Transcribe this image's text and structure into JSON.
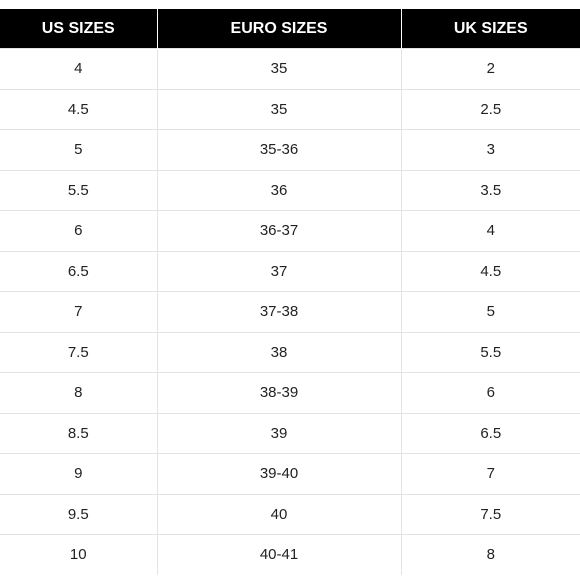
{
  "headers": {
    "us": "US SIZES",
    "euro": "EURO SIZES",
    "uk": "UK SIZES"
  },
  "rows": [
    {
      "us": "4",
      "euro": "35",
      "uk": "2"
    },
    {
      "us": "4.5",
      "euro": "35",
      "uk": "2.5"
    },
    {
      "us": "5",
      "euro": "35-36",
      "uk": "3"
    },
    {
      "us": "5.5",
      "euro": "36",
      "uk": "3.5"
    },
    {
      "us": "6",
      "euro": "36-37",
      "uk": "4"
    },
    {
      "us": "6.5",
      "euro": "37",
      "uk": "4.5"
    },
    {
      "us": "7",
      "euro": "37-38",
      "uk": "5"
    },
    {
      "us": "7.5",
      "euro": "38",
      "uk": "5.5"
    },
    {
      "us": "8",
      "euro": "38-39",
      "uk": "6"
    },
    {
      "us": "8.5",
      "euro": "39",
      "uk": "6.5"
    },
    {
      "us": "9",
      "euro": "39-40",
      "uk": "7"
    },
    {
      "us": "9.5",
      "euro": "40",
      "uk": "7.5"
    },
    {
      "us": "10",
      "euro": "40-41",
      "uk": "8"
    }
  ],
  "chart_data": {
    "type": "table",
    "columns": [
      "US SIZES",
      "EURO SIZES",
      "UK SIZES"
    ],
    "rows": [
      [
        "4",
        "35",
        "2"
      ],
      [
        "4.5",
        "35",
        "2.5"
      ],
      [
        "5",
        "35-36",
        "3"
      ],
      [
        "5.5",
        "36",
        "3.5"
      ],
      [
        "6",
        "36-37",
        "4"
      ],
      [
        "6.5",
        "37",
        "4.5"
      ],
      [
        "7",
        "37-38",
        "5"
      ],
      [
        "7.5",
        "38",
        "5.5"
      ],
      [
        "8",
        "38-39",
        "6"
      ],
      [
        "8.5",
        "39",
        "6.5"
      ],
      [
        "9",
        "39-40",
        "7"
      ],
      [
        "9.5",
        "40",
        "7.5"
      ],
      [
        "10",
        "40-41",
        "8"
      ]
    ]
  },
  "colors": {
    "header_background": "#000000",
    "header_text": "#ffffff",
    "cell_text": "#222222",
    "grid_line": "#e3e3e3"
  }
}
